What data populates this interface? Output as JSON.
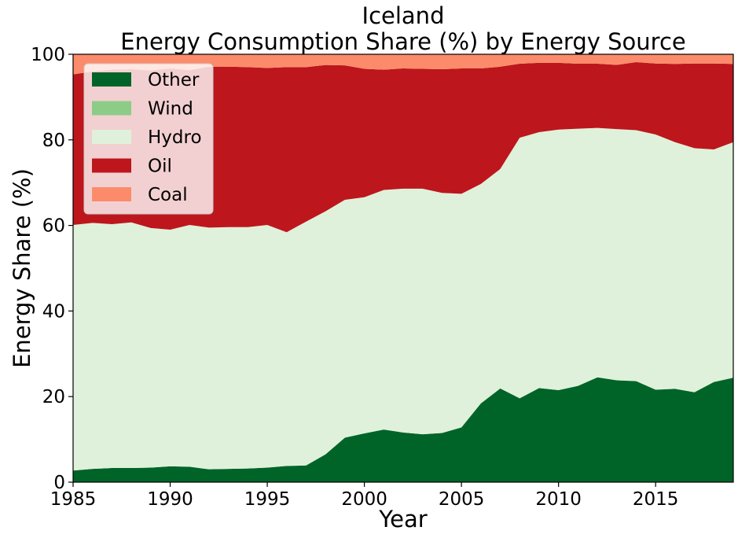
{
  "chart_data": {
    "type": "area",
    "stacked": true,
    "title": "Iceland",
    "subtitle": "Energy Consumption Share (%) by Energy Source",
    "xlabel": "Year",
    "ylabel": "Energy Share (%)",
    "xlim": [
      1985,
      2019
    ],
    "ylim": [
      0,
      100
    ],
    "xticks": [
      1985,
      1990,
      1995,
      2000,
      2005,
      2010,
      2015
    ],
    "yticks": [
      0,
      20,
      40,
      60,
      80,
      100
    ],
    "grid": false,
    "legend_position": "top-left",
    "x": [
      1985,
      1986,
      1987,
      1988,
      1989,
      1990,
      1991,
      1992,
      1993,
      1994,
      1995,
      1996,
      1997,
      1998,
      1999,
      2000,
      2001,
      2002,
      2003,
      2004,
      2005,
      2006,
      2007,
      2008,
      2009,
      2010,
      2011,
      2012,
      2013,
      2014,
      2015,
      2016,
      2017,
      2018,
      2019
    ],
    "series": [
      {
        "name": "Other",
        "color": "#006428",
        "values": [
          2.7,
          3.1,
          3.3,
          3.3,
          3.4,
          3.7,
          3.6,
          3.0,
          3.1,
          3.2,
          3.4,
          3.8,
          3.9,
          6.5,
          10.4,
          11.4,
          12.3,
          11.6,
          11.2,
          11.5,
          12.8,
          18.4,
          21.9,
          19.6,
          22.0,
          21.5,
          22.5,
          24.5,
          23.8,
          23.6,
          21.6,
          21.8,
          21.0,
          23.4,
          24.4
        ]
      },
      {
        "name": "Wind",
        "color": "#8ccc87",
        "values": [
          0,
          0,
          0,
          0,
          0,
          0,
          0,
          0,
          0,
          0,
          0,
          0,
          0,
          0,
          0,
          0,
          0,
          0,
          0,
          0,
          0,
          0,
          0,
          0,
          0,
          0,
          0,
          0,
          0.02,
          0.05,
          0.05,
          0.05,
          0.05,
          0.05,
          0.05
        ]
      },
      {
        "name": "Hydro",
        "color": "#dff1da",
        "values": [
          57.4,
          57.5,
          57.0,
          57.4,
          56.0,
          55.3,
          56.5,
          56.5,
          56.5,
          56.4,
          56.7,
          54.6,
          57.0,
          56.8,
          55.6,
          55.2,
          56.0,
          57.0,
          57.4,
          56.1,
          54.6,
          51.3,
          51.3,
          60.9,
          59.8,
          60.9,
          60.1,
          58.3,
          58.7,
          58.6,
          59.6,
          57.6,
          57.0,
          54.3,
          55.0
        ]
      },
      {
        "name": "Oil",
        "color": "#bd161c",
        "values": [
          35.2,
          35.4,
          36.1,
          35.8,
          36.8,
          37.7,
          36.2,
          37.6,
          37.5,
          37.4,
          36.7,
          38.6,
          36.1,
          34.2,
          31.4,
          30.0,
          28.1,
          28.1,
          28.0,
          28.9,
          29.3,
          27.0,
          23.9,
          17.3,
          16.2,
          15.6,
          15.2,
          15.0,
          15.0,
          15.9,
          16.6,
          18.3,
          19.8,
          20.1,
          18.3
        ]
      },
      {
        "name": "Coal",
        "color": "#fc8b6b",
        "values": [
          4.7,
          4.0,
          3.6,
          3.5,
          3.8,
          3.3,
          3.7,
          2.9,
          2.9,
          3.0,
          3.2,
          3.0,
          3.0,
          2.5,
          2.6,
          3.4,
          3.6,
          3.3,
          3.4,
          3.5,
          3.3,
          3.3,
          2.9,
          2.2,
          2.0,
          2.0,
          2.2,
          2.2,
          2.5,
          1.9,
          2.1,
          2.3,
          2.2,
          2.2,
          2.2
        ]
      }
    ]
  }
}
